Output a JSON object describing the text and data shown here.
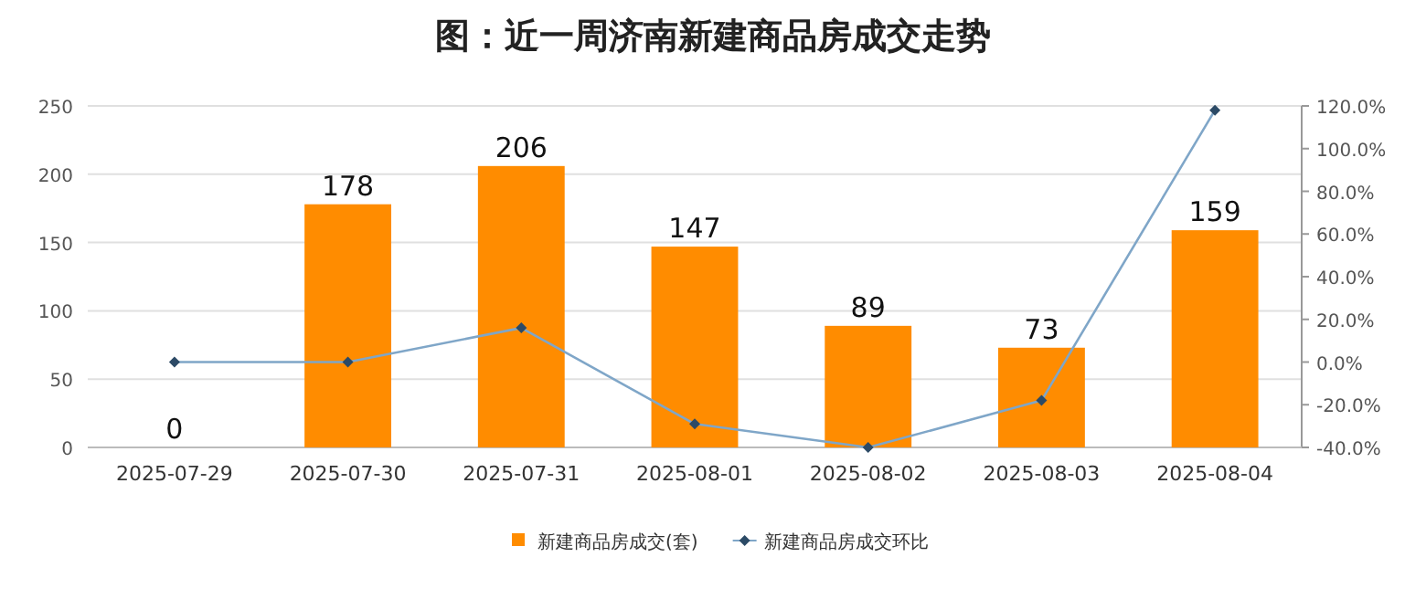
{
  "chart_data": {
    "type": "bar",
    "title": "图：近一周济南新建商品房成交走势",
    "categories": [
      "2025-07-29",
      "2025-07-30",
      "2025-07-31",
      "2025-08-01",
      "2025-08-02",
      "2025-08-03",
      "2025-08-04"
    ],
    "series": [
      {
        "name": "新建商品房成交(套)",
        "color": "#ff8c00",
        "values": [
          0,
          178,
          206,
          147,
          89,
          73,
          159
        ],
        "value_labels": [
          "0",
          "178",
          "206",
          "147",
          "89",
          "73",
          "159"
        ]
      },
      {
        "name": "新建商品房成交环比",
        "type": "line",
        "axis": "y2",
        "color": "#7fa6c8",
        "marker": "diamond",
        "values": [
          0,
          0,
          16,
          -29,
          -40,
          -18,
          118
        ]
      }
    ],
    "ylim": [
      0,
      250
    ],
    "yticks": [
      0,
      50,
      100,
      150,
      200,
      250
    ],
    "y2lim": [
      -40,
      120
    ],
    "y2ticks": [
      {
        "value": -40,
        "label": "-40.0%"
      },
      {
        "value": -20,
        "label": "-20.0%"
      },
      {
        "value": 0,
        "label": "0.0%"
      },
      {
        "value": 20,
        "label": "20.0%"
      },
      {
        "value": 40,
        "label": "40.0%"
      },
      {
        "value": 60,
        "label": "60.0%"
      },
      {
        "value": 80,
        "label": "80.0%"
      },
      {
        "value": 100,
        "label": "100.0%"
      },
      {
        "value": 120,
        "label": "120.0%"
      }
    ],
    "grid": "y",
    "legend": "bottom"
  }
}
